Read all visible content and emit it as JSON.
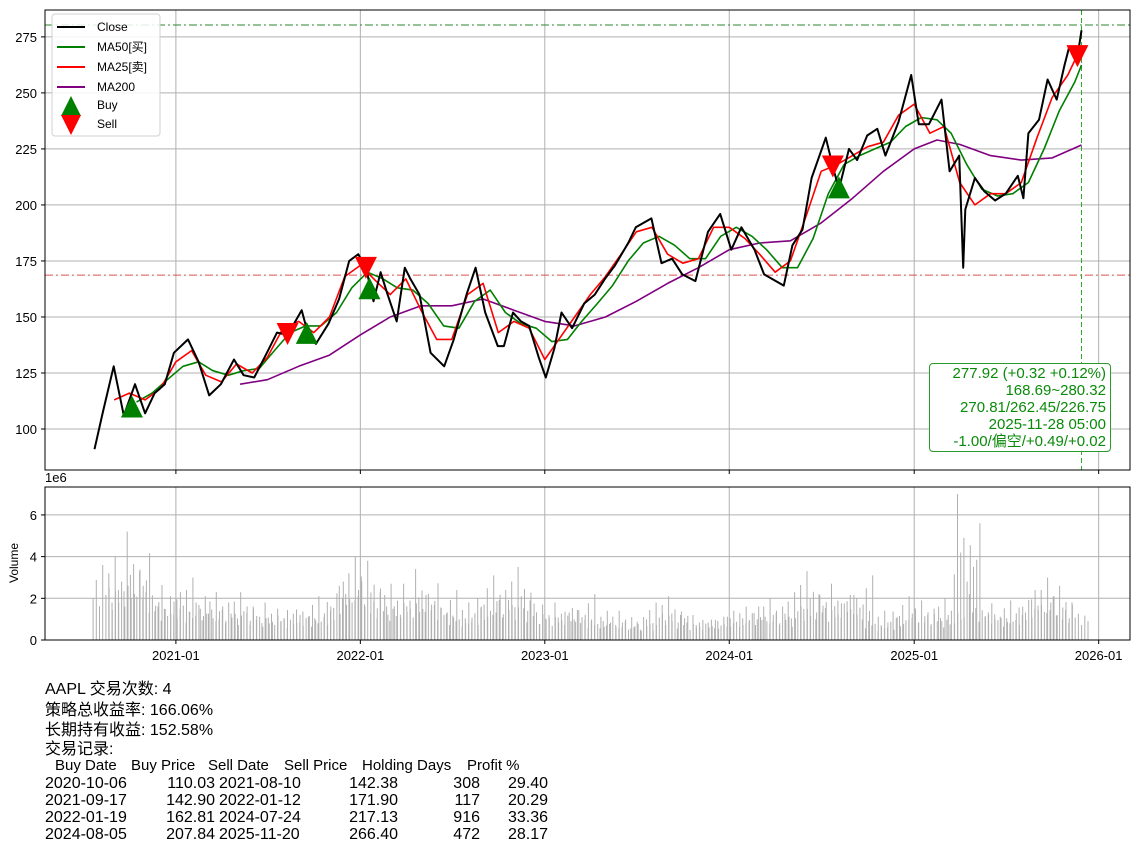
{
  "chart_data": [
    {
      "type": "line",
      "panel": "price",
      "xlim": [
        "2020-04-17",
        "2026-03-04"
      ],
      "ylim": [
        81.7,
        287.0
      ],
      "grid": true,
      "x_ticks": [
        "2021-01",
        "2022-01",
        "2023-01",
        "2024-01",
        "2025-01",
        "2026-01"
      ],
      "y_ticks": [
        100,
        125,
        150,
        175,
        200,
        225,
        250,
        275
      ],
      "legend_placement": "upper-left",
      "colors": {
        "close": "#000000",
        "ma50": "#008000",
        "ma25": "#ff0000",
        "ma200": "#800080",
        "buy": "#008000",
        "sell": "#ff0000"
      },
      "series": [
        {
          "name": "Close",
          "color": "#000000",
          "x": [
            "2020-07-24",
            "2020-08-10",
            "2020-08-31",
            "2020-09-20",
            "2020-10-12",
            "2020-11-01",
            "2020-11-20",
            "2020-12-10",
            "2020-12-28",
            "2021-01-25",
            "2021-02-15",
            "2021-03-08",
            "2021-03-31",
            "2021-04-26",
            "2021-05-15",
            "2021-06-05",
            "2021-06-30",
            "2021-07-20",
            "2021-08-10",
            "2021-09-07",
            "2021-09-20",
            "2021-10-05",
            "2021-10-30",
            "2021-11-20",
            "2021-12-10",
            "2021-12-28",
            "2022-01-12",
            "2022-01-27",
            "2022-02-10",
            "2022-02-24",
            "2022-03-14",
            "2022-03-30",
            "2022-04-10",
            "2022-04-28",
            "2022-05-20",
            "2022-06-16",
            "2022-07-05",
            "2022-07-30",
            "2022-08-17",
            "2022-09-05",
            "2022-09-30",
            "2022-10-12",
            "2022-10-30",
            "2022-11-15",
            "2022-12-01",
            "2022-12-20",
            "2023-01-03",
            "2023-01-20",
            "2023-02-03",
            "2023-02-24",
            "2023-03-20",
            "2023-04-10",
            "2023-04-30",
            "2023-05-20",
            "2023-06-15",
            "2023-06-30",
            "2023-07-31",
            "2023-08-20",
            "2023-09-10",
            "2023-09-30",
            "2023-10-26",
            "2023-11-20",
            "2023-12-14",
            "2024-01-05",
            "2024-01-25",
            "2024-02-20",
            "2024-03-10",
            "2024-04-18",
            "2024-05-05",
            "2024-05-25",
            "2024-06-12",
            "2024-07-10",
            "2024-07-24",
            "2024-08-05",
            "2024-08-25",
            "2024-09-10",
            "2024-09-30",
            "2024-10-20",
            "2024-11-05",
            "2024-12-01",
            "2024-12-26",
            "2025-01-10",
            "2025-01-30",
            "2025-02-24",
            "2025-03-12",
            "2025-03-31",
            "2025-04-08",
            "2025-04-12",
            "2025-05-01",
            "2025-05-20",
            "2025-06-10",
            "2025-07-01",
            "2025-07-25",
            "2025-08-05",
            "2025-08-15",
            "2025-09-05",
            "2025-09-22",
            "2025-10-10",
            "2025-10-25",
            "2025-11-03",
            "2025-11-20",
            "2025-11-28"
          ],
          "y": [
            91,
            108,
            128,
            106,
            120,
            107,
            116,
            120,
            134,
            140,
            130,
            115,
            120,
            131,
            124,
            123,
            134,
            143,
            142,
            153,
            142,
            138,
            147,
            158,
            175,
            178,
            172,
            157,
            170,
            160,
            148,
            172,
            167,
            160,
            134,
            128,
            140,
            160,
            172,
            152,
            137,
            137,
            152,
            148,
            146,
            132,
            123,
            136,
            152,
            145,
            156,
            160,
            167,
            173,
            183,
            190,
            194,
            174,
            176,
            169,
            166,
            188,
            196,
            180,
            190,
            180,
            169,
            164,
            182,
            189,
            212,
            230,
            217,
            207,
            225,
            220,
            231,
            234,
            222,
            237,
            258,
            236,
            236,
            247,
            215,
            222,
            172,
            198,
            212,
            206,
            202,
            205,
            213,
            203,
            232,
            238,
            256,
            247,
            262,
            270,
            266,
            277.92
          ]
        },
        {
          "name": "MA50[买]",
          "color": "#008000",
          "x": [
            "2020-10-15",
            "2020-11-15",
            "2020-12-15",
            "2021-01-15",
            "2021-02-15",
            "2021-03-15",
            "2021-04-15",
            "2021-05-15",
            "2021-06-15",
            "2021-07-15",
            "2021-08-15",
            "2021-09-15",
            "2021-10-15",
            "2021-11-15",
            "2021-12-15",
            "2022-01-15",
            "2022-02-15",
            "2022-03-15",
            "2022-04-15",
            "2022-05-15",
            "2022-06-15",
            "2022-07-15",
            "2022-08-15",
            "2022-09-15",
            "2022-10-15",
            "2022-11-15",
            "2022-12-15",
            "2023-01-15",
            "2023-02-15",
            "2023-03-15",
            "2023-04-15",
            "2023-05-15",
            "2023-06-15",
            "2023-07-15",
            "2023-08-15",
            "2023-09-15",
            "2023-10-15",
            "2023-11-15",
            "2023-12-15",
            "2024-01-15",
            "2024-02-15",
            "2024-03-15",
            "2024-04-15",
            "2024-05-15",
            "2024-06-15",
            "2024-07-15",
            "2024-08-15",
            "2024-09-15",
            "2024-10-15",
            "2024-11-15",
            "2024-12-15",
            "2025-01-15",
            "2025-02-15",
            "2025-03-15",
            "2025-04-15",
            "2025-05-15",
            "2025-06-15",
            "2025-07-15",
            "2025-08-15",
            "2025-09-15",
            "2025-10-15",
            "2025-11-15",
            "2025-11-28"
          ],
          "y": [
            112,
            116,
            122,
            128,
            130,
            126,
            124,
            126,
            127,
            135,
            143,
            146,
            146,
            152,
            163,
            170,
            167,
            163,
            162,
            156,
            146,
            145,
            157,
            162,
            152,
            147,
            145,
            139,
            140,
            148,
            156,
            164,
            175,
            183,
            186,
            182,
            176,
            176,
            186,
            190,
            186,
            180,
            172,
            172,
            185,
            205,
            218,
            222,
            225,
            228,
            235,
            239,
            238,
            232,
            218,
            207,
            204,
            205,
            210,
            225,
            242,
            255,
            262.45
          ]
        },
        {
          "name": "MA25[卖]",
          "color": "#ff0000",
          "x": [
            "2020-09-01",
            "2020-10-01",
            "2020-11-01",
            "2020-12-01",
            "2021-01-01",
            "2021-02-01",
            "2021-03-01",
            "2021-04-01",
            "2021-05-01",
            "2021-06-01",
            "2021-07-01",
            "2021-08-01",
            "2021-09-01",
            "2021-10-01",
            "2021-11-01",
            "2021-12-01",
            "2022-01-01",
            "2022-02-01",
            "2022-03-01",
            "2022-04-01",
            "2022-05-01",
            "2022-06-01",
            "2022-07-01",
            "2022-08-01",
            "2022-09-01",
            "2022-10-01",
            "2022-11-01",
            "2022-12-01",
            "2023-01-01",
            "2023-02-01",
            "2023-03-01",
            "2023-04-01",
            "2023-05-01",
            "2023-06-01",
            "2023-07-01",
            "2023-08-01",
            "2023-09-01",
            "2023-10-01",
            "2023-11-01",
            "2023-12-01",
            "2024-01-01",
            "2024-02-01",
            "2024-03-01",
            "2024-04-01",
            "2024-05-01",
            "2024-06-01",
            "2024-07-01",
            "2024-08-01",
            "2024-09-01",
            "2024-10-01",
            "2024-11-01",
            "2024-12-01",
            "2025-01-01",
            "2025-02-01",
            "2025-03-01",
            "2025-04-01",
            "2025-05-01",
            "2025-06-01",
            "2025-07-01",
            "2025-08-01",
            "2025-09-01",
            "2025-10-01",
            "2025-11-01",
            "2025-11-28"
          ],
          "y": [
            113,
            116,
            113,
            118,
            130,
            135,
            124,
            121,
            129,
            125,
            132,
            145,
            148,
            143,
            150,
            168,
            173,
            166,
            160,
            167,
            153,
            140,
            140,
            160,
            165,
            143,
            148,
            145,
            131,
            141,
            150,
            160,
            168,
            178,
            188,
            190,
            178,
            174,
            176,
            190,
            190,
            185,
            178,
            170,
            175,
            195,
            215,
            218,
            222,
            226,
            228,
            240,
            245,
            232,
            235,
            210,
            200,
            205,
            205,
            210,
            230,
            248,
            258,
            270.81
          ]
        },
        {
          "name": "MA200",
          "color": "#800080",
          "x": [
            "2021-05-08",
            "2021-07-01",
            "2021-09-01",
            "2021-11-01",
            "2022-01-01",
            "2022-03-01",
            "2022-05-01",
            "2022-07-01",
            "2022-09-01",
            "2022-11-01",
            "2023-01-01",
            "2023-03-01",
            "2023-05-01",
            "2023-07-01",
            "2023-09-01",
            "2023-11-01",
            "2024-01-01",
            "2024-03-01",
            "2024-05-01",
            "2024-07-01",
            "2024-09-01",
            "2024-11-01",
            "2025-01-01",
            "2025-02-15",
            "2025-04-01",
            "2025-06-01",
            "2025-08-01",
            "2025-10-01",
            "2025-11-28"
          ],
          "y": [
            120,
            122,
            128,
            133,
            142,
            150,
            155,
            155,
            158,
            153,
            148,
            146,
            150,
            157,
            165,
            172,
            180,
            183,
            184,
            192,
            203,
            215,
            225,
            229,
            227,
            222,
            220,
            221,
            226.75
          ]
        }
      ],
      "markers": {
        "buy": {
          "name": "Buy",
          "x": [
            "2020-10-06",
            "2021-09-17",
            "2022-01-19",
            "2024-08-05"
          ],
          "y": [
            110.03,
            142.9,
            162.81,
            207.84
          ]
        },
        "sell": {
          "name": "Sell",
          "x": [
            "2021-08-10",
            "2022-01-12",
            "2024-07-24",
            "2025-11-20"
          ],
          "y": [
            142.38,
            171.9,
            217.13,
            266.4
          ]
        }
      },
      "reference_lines": {
        "high": {
          "value": 280.32,
          "color": "#2a8a2a",
          "style": "dash-dot"
        },
        "low": {
          "value": 168.69,
          "color": "#e05050",
          "style": "dash-dot"
        },
        "cursor_date": {
          "value": "2025-11-28",
          "color": "#2aaa2a",
          "style": "dashed"
        }
      },
      "annotation": {
        "lines": [
          "277.92 (+0.32 +0.12%)",
          "168.69~280.32",
          "270.81/262.45/226.75",
          "2025-11-28 05:00",
          "-1.00/偏空/+0.49/+0.02"
        ],
        "color": "#0a8a0a"
      }
    },
    {
      "type": "bar",
      "panel": "volume",
      "ylabel": "Volume",
      "scale_label": "1e6",
      "ylim": [
        0,
        7.34
      ],
      "y_ticks": [
        0,
        2,
        4,
        6
      ],
      "color": "#b0b0b0",
      "x": [
        "2020-08",
        "2020-09",
        "2020-10",
        "2020-11",
        "2020-12",
        "2021-01",
        "2021-02",
        "2021-03",
        "2021-04",
        "2021-05",
        "2021-06",
        "2021-07",
        "2021-08",
        "2021-09",
        "2021-10",
        "2021-11",
        "2021-12",
        "2022-01",
        "2022-02",
        "2022-03",
        "2022-04",
        "2022-05",
        "2022-06",
        "2022-07",
        "2022-08",
        "2022-09",
        "2022-10",
        "2022-11",
        "2022-12",
        "2023-01",
        "2023-02",
        "2023-03",
        "2023-04",
        "2023-05",
        "2023-06",
        "2023-07",
        "2023-08",
        "2023-09",
        "2023-10",
        "2023-11",
        "2023-12",
        "2024-01",
        "2024-02",
        "2024-03",
        "2024-04",
        "2024-05",
        "2024-06",
        "2024-07",
        "2024-08",
        "2024-09",
        "2024-10",
        "2024-11",
        "2024-12",
        "2025-01",
        "2025-02",
        "2025-03",
        "2025-04",
        "2025-05",
        "2025-06",
        "2025-07",
        "2025-08",
        "2025-09",
        "2025-10",
        "2025-11"
      ],
      "values": [
        3.6,
        4.0,
        5.2,
        3.3,
        2.3,
        3.0,
        2.1,
        2.3,
        1.8,
        2.3,
        1.6,
        1.8,
        1.5,
        2.1,
        1.6,
        2.8,
        4.0,
        3.8,
        2.3,
        2.7,
        2.7,
        3.4,
        2.4,
        1.8,
        1.6,
        3.1,
        2.4,
        3.5,
        1.9,
        1.7,
        1.8,
        2.2,
        1.4,
        1.4,
        1.1,
        1.1,
        1.8,
        2.1,
        1.2,
        1.2,
        1.4,
        1.6,
        1.6,
        2.0,
        1.6,
        2.3,
        3.3,
        2.2,
        2.7,
        3.1,
        1.4,
        1.1,
        2.1,
        1.9,
        1.5,
        2.0,
        7.0,
        2.2,
        1.9,
        1.6,
        2.4,
        3.0,
        2.6,
        1.8
      ]
    }
  ],
  "legend": [
    "Close",
    "MA50[买]",
    "MA25[卖]",
    "MA200",
    "Buy",
    "Sell"
  ],
  "summary": {
    "line1": "AAPL 交易次数: 4",
    "line2": "策略总收益率: 166.06%",
    "line3": "长期持有收益: 152.58%",
    "line4": "交易记录:"
  },
  "trades": {
    "headers": [
      "Buy Date",
      "Buy Price",
      "Sell Date",
      "Sell Price",
      "Holding Days",
      "Profit %"
    ],
    "rows": [
      [
        "2020-10-06",
        "110.03",
        "2021-08-10",
        "142.38",
        "308",
        "29.40"
      ],
      [
        "2021-09-17",
        "142.90",
        "2022-01-12",
        "171.90",
        "117",
        "20.29"
      ],
      [
        "2022-01-19",
        "162.81",
        "2024-07-24",
        "217.13",
        "916",
        "33.36"
      ],
      [
        "2024-08-05",
        "207.84",
        "2025-11-20",
        "266.40",
        "472",
        "28.17"
      ]
    ]
  }
}
